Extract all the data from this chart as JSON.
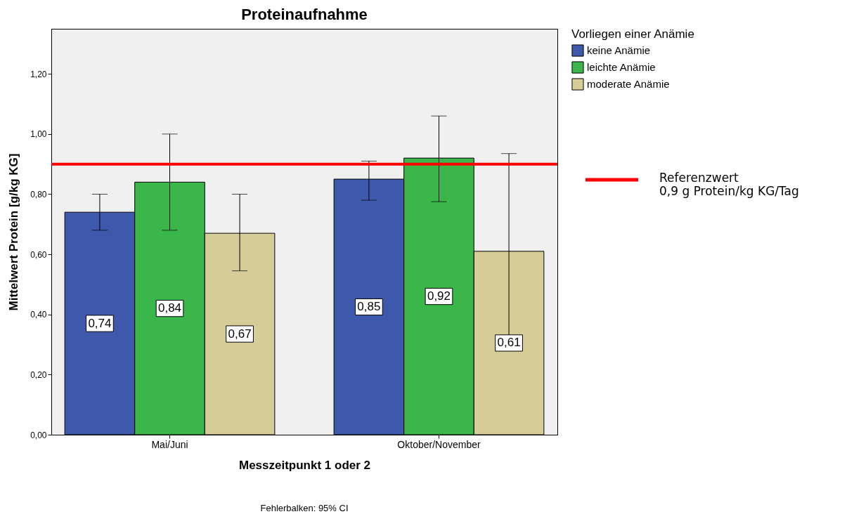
{
  "chart_data": {
    "type": "bar",
    "title": "Proteinaufnahme",
    "xlabel": "Messzeitpunkt 1 oder 2",
    "ylabel": "Mittelwert Protein [g/kg KG]",
    "legend_title": "Vorliegen einer Anämie",
    "categories": [
      "Mai/Juni",
      "Oktober/November"
    ],
    "series": [
      {
        "name": "keine Anämie",
        "color": "#3e58ac",
        "values": [
          0.74,
          0.85
        ],
        "value_labels": [
          "0,74",
          "0,85"
        ],
        "errors": [
          [
            0.68,
            0.8
          ],
          [
            0.78,
            0.91
          ]
        ]
      },
      {
        "name": "leichte Anämie",
        "color": "#3bb64a",
        "values": [
          0.84,
          0.92
        ],
        "value_labels": [
          "0,84",
          "0,92"
        ],
        "errors": [
          [
            0.68,
            1.0
          ],
          [
            0.775,
            1.06
          ]
        ]
      },
      {
        "name": "moderate Anämie",
        "color": "#d5cc98",
        "values": [
          0.67,
          0.61
        ],
        "value_labels": [
          "0,67",
          "0,61"
        ],
        "errors": [
          [
            0.545,
            0.8
          ],
          [
            0.285,
            0.935
          ]
        ]
      }
    ],
    "ylim": [
      0,
      1.35
    ],
    "yticks": [
      {
        "value": 0,
        "label": "0,00"
      },
      {
        "value": 0.2,
        "label": "0,20"
      },
      {
        "value": 0.4,
        "label": "0,40"
      },
      {
        "value": 0.6,
        "label": "0,60"
      },
      {
        "value": 0.8,
        "label": "0,80"
      },
      {
        "value": 1.0,
        "label": "1,00"
      },
      {
        "value": 1.2,
        "label": "1,20"
      }
    ],
    "ref_lines": [
      {
        "axis": "y",
        "value": 0.9,
        "label": "Referenzwert\n0,9 g Protein/kg KG/Tag",
        "color": "#ff0000"
      }
    ],
    "legend": "top right",
    "annotations": [
      "Fehlerbalken: 95% CI"
    ]
  }
}
